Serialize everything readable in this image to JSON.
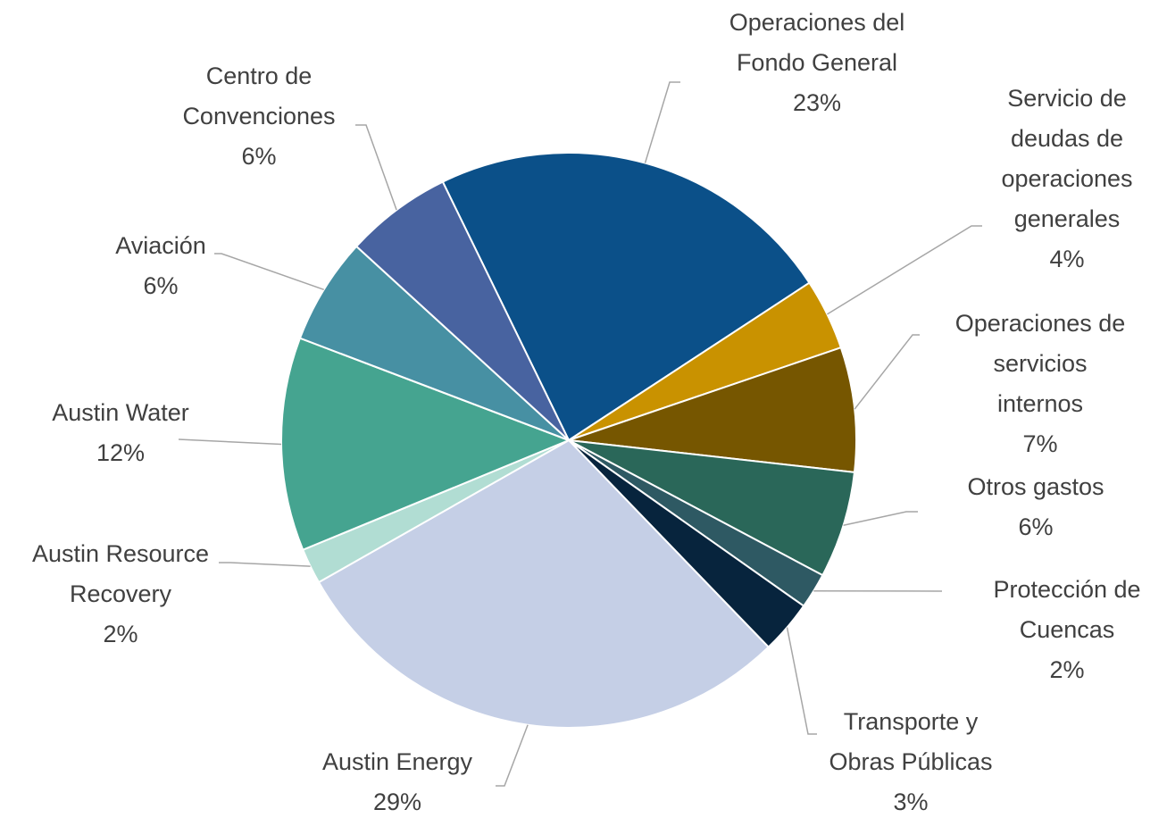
{
  "chart_data": {
    "type": "pie",
    "categories": [
      "Operaciones del Fondo General",
      "Servicio de deudas de operaciones generales",
      "Operaciones de servicios internos",
      "Otros gastos",
      "Protección de Cuencas",
      "Transporte y Obras Públicas",
      "Austin Energy",
      "Austin Resource Recovery",
      "Austin Water",
      "Aviación",
      "Centro de Convenciones"
    ],
    "values": [
      23,
      4,
      7,
      6,
      2,
      3,
      29,
      2,
      12,
      6,
      6
    ],
    "value_labels": [
      "23%",
      "4%",
      "7%",
      "6%",
      "2%",
      "3%",
      "29%",
      "2%",
      "12%",
      "6%",
      "6%"
    ],
    "colors": [
      "#0b5089",
      "#c99200",
      "#765600",
      "#2a6759",
      "#2e5963",
      "#07243d",
      "#c5cfe6",
      "#b1ddd3",
      "#45a490",
      "#4790a3",
      "#4863a0"
    ]
  }
}
